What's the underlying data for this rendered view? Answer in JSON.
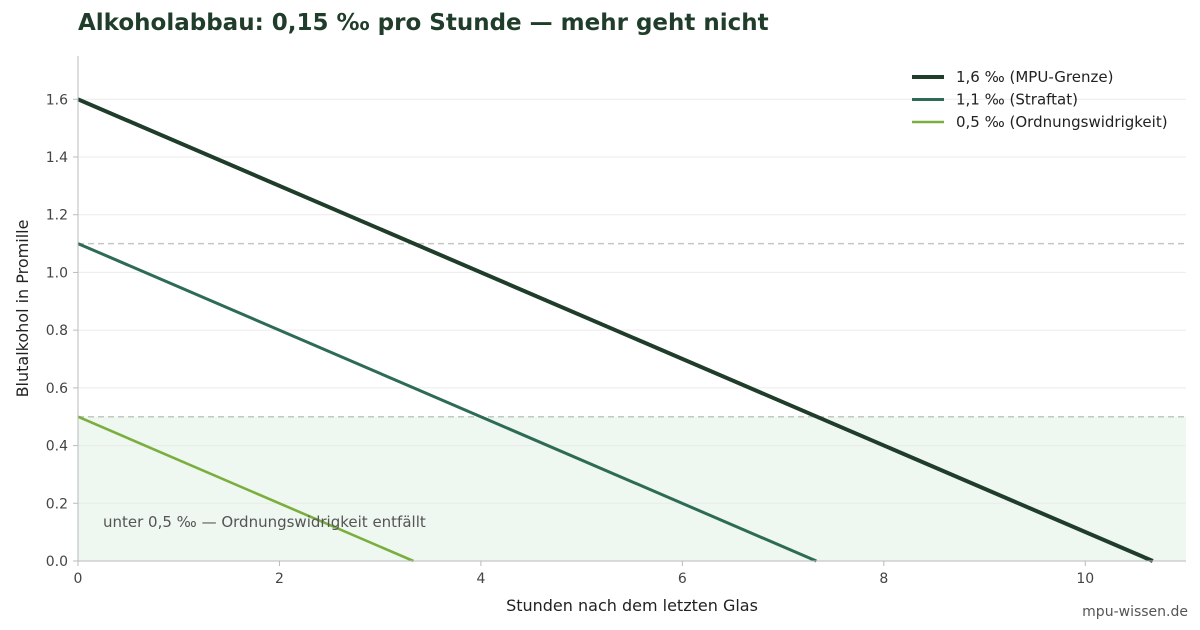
{
  "chart_data": {
    "type": "line",
    "title": "Alkoholabbau: 0,15 ‰ pro Stunde — mehr geht nicht",
    "xlabel": "Stunden nach dem letzten Glas",
    "ylabel": "Blutalkohol in Promille",
    "xlim": [
      0,
      11
    ],
    "ylim": [
      0,
      1.75
    ],
    "xticks": [
      0,
      2,
      4,
      6,
      8,
      10
    ],
    "yticks": [
      0.0,
      0.2,
      0.4,
      0.6,
      0.8,
      1.0,
      1.2,
      1.4,
      1.6
    ],
    "ytick_labels": [
      "0.0",
      "0.2",
      "0.4",
      "0.6",
      "0.8",
      "1.0",
      "1.2",
      "1.4",
      "1.6"
    ],
    "grid": "horizontal",
    "legend_position": "top-right",
    "series": [
      {
        "name": "1,6 ‰ (MPU-Grenze)",
        "x": [
          0,
          10.67
        ],
        "y": [
          1.6,
          0
        ],
        "color": "#1f3d2a"
      },
      {
        "name": "1,1 ‰ (Straftat)",
        "x": [
          0,
          7.33
        ],
        "y": [
          1.1,
          0
        ],
        "color": "#2e6b55"
      },
      {
        "name": "0,5 ‰ (Ordnungswidrigkeit)",
        "x": [
          0,
          3.33
        ],
        "y": [
          0.5,
          0
        ],
        "color": "#7aaf3f"
      }
    ],
    "reference_lines": [
      1.1,
      0.5
    ],
    "shaded_region": {
      "y_from": 0,
      "y_to": 0.5,
      "color": "#eef7f0"
    },
    "annotation": "unter 0,5 ‰ — Ordnungswidrigkeit entfällt",
    "source": "mpu-wissen.de"
  }
}
